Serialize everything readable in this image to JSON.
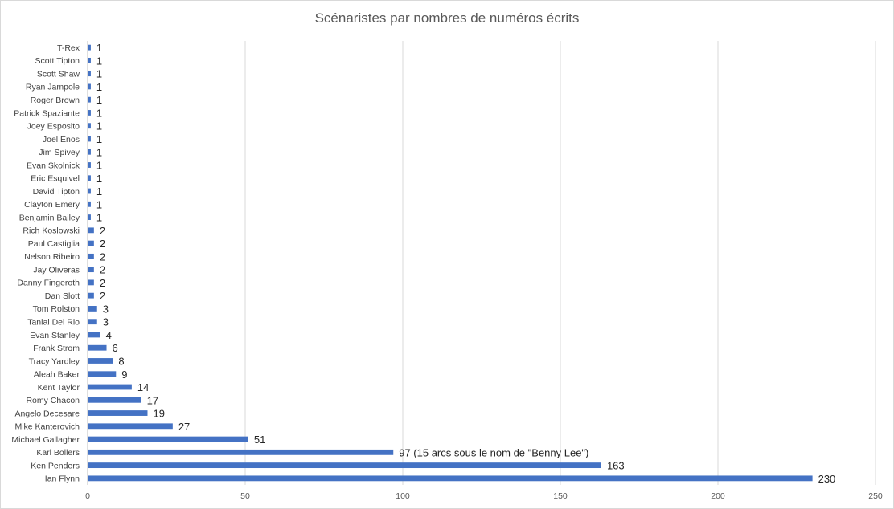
{
  "chart_data": {
    "type": "bar",
    "orientation": "horizontal",
    "title": "Scénaristes par nombres de numéros écrits",
    "xlabel": "",
    "ylabel": "",
    "xlim": [
      0,
      250
    ],
    "xticks": [
      0,
      50,
      100,
      150,
      200,
      250
    ],
    "grid": true,
    "legend": "none",
    "bar_color": "#4472c4",
    "categories": [
      "T-Rex",
      "Scott Tipton",
      "Scott Shaw",
      "Ryan Jampole",
      "Roger Brown",
      "Patrick Spaziante",
      "Joey Esposito",
      "Joel Enos",
      "Jim Spivey",
      "Evan Skolnick",
      "Eric Esquivel",
      "David Tipton",
      "Clayton Emery",
      "Benjamin Bailey",
      "Rich Koslowski",
      "Paul Castiglia",
      "Nelson Ribeiro",
      "Jay Oliveras",
      "Danny Fingeroth",
      "Dan Slott",
      "Tom Rolston",
      "Tanial Del Rio",
      "Evan Stanley",
      "Frank Strom",
      "Tracy Yardley",
      "Aleah Baker",
      "Kent Taylor",
      "Romy Chacon",
      "Angelo Decesare",
      "Mike Kanterovich",
      "Michael Gallagher",
      "Karl Bollers",
      "Ken Penders",
      "Ian Flynn"
    ],
    "values": [
      1,
      1,
      1,
      1,
      1,
      1,
      1,
      1,
      1,
      1,
      1,
      1,
      1,
      1,
      2,
      2,
      2,
      2,
      2,
      2,
      3,
      3,
      4,
      6,
      8,
      9,
      14,
      17,
      19,
      27,
      51,
      97,
      163,
      230
    ],
    "data_labels": [
      "1",
      "1",
      "1",
      "1",
      "1",
      "1",
      "1",
      "1",
      "1",
      "1",
      "1",
      "1",
      "1",
      "1",
      "2",
      "2",
      "2",
      "2",
      "2",
      "2",
      "3",
      "3",
      "4",
      "6",
      "8",
      "9",
      "14",
      "17",
      "19",
      "27",
      "51",
      "97 (15 arcs sous le nom de \"Benny Lee\")",
      "163",
      "230"
    ]
  }
}
